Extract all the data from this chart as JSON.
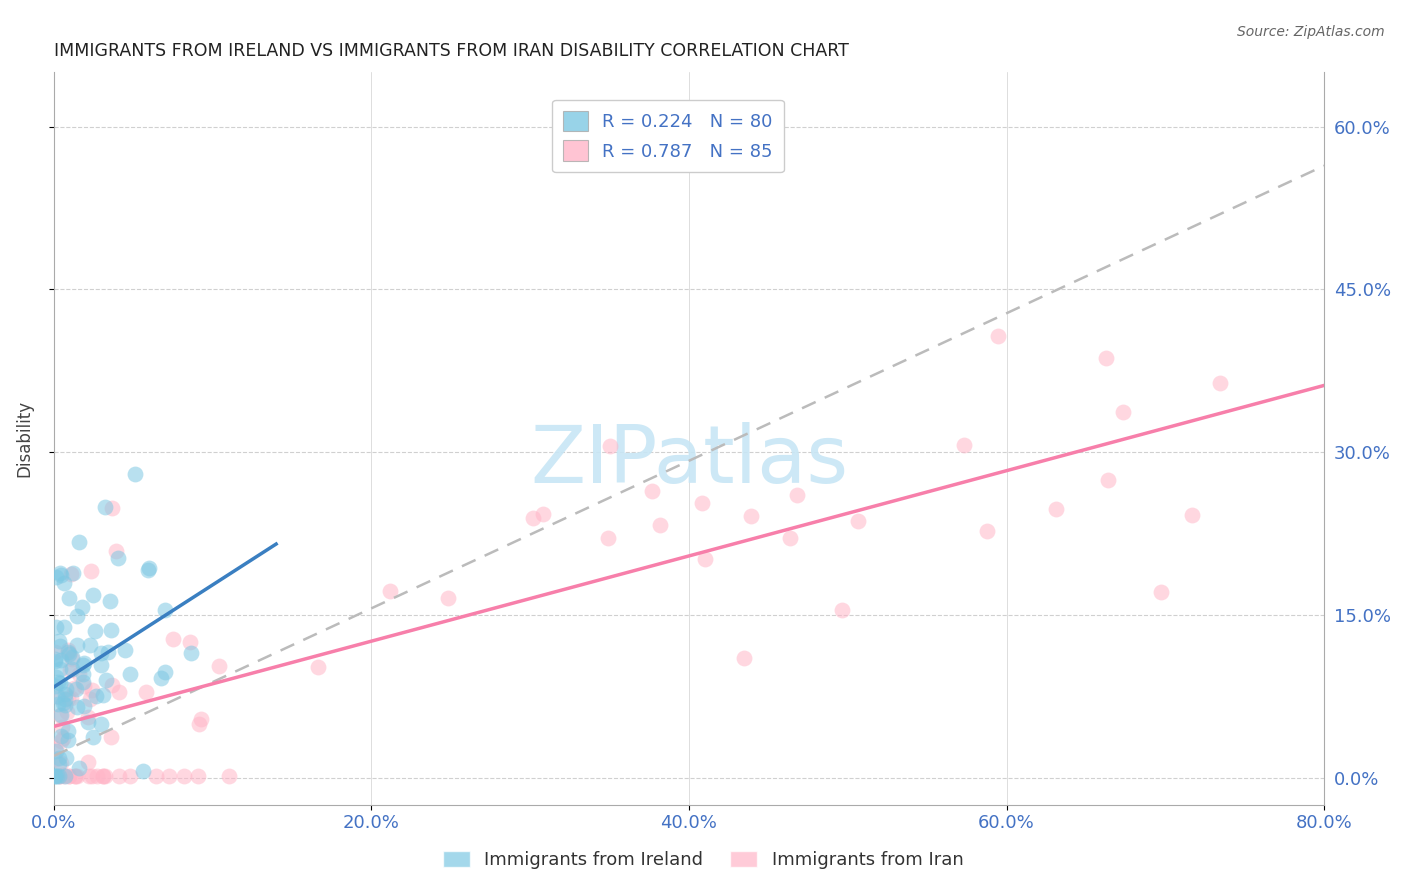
{
  "title": "IMMIGRANTS FROM IRELAND VS IMMIGRANTS FROM IRAN DISABILITY CORRELATION CHART",
  "source": "Source: ZipAtlas.com",
  "xlabel_ticks": [
    "0.0%",
    "20.0%",
    "40.0%",
    "60.0%",
    "80.0%"
  ],
  "ylabel_ticks": [
    "0.0%",
    "15.0%",
    "30.0%",
    "45.0%",
    "60.0%"
  ],
  "ylabel": "Disability",
  "xlim": [
    0.0,
    0.8
  ],
  "ylim": [
    -0.02,
    0.65
  ],
  "ireland_R": 0.224,
  "ireland_N": 80,
  "iran_R": 0.787,
  "iran_N": 85,
  "ireland_color": "#7ec8e3",
  "iran_color": "#ffb6c8",
  "ireland_line_color": "#3a7fc1",
  "iran_line_color": "#f77faa",
  "ref_line_color": "#bbbbbb",
  "watermark_text": "ZIPatlas",
  "watermark_color": "#c8e6f5",
  "background_color": "#ffffff",
  "grid_color": "#d0d0d0",
  "seed": 42
}
